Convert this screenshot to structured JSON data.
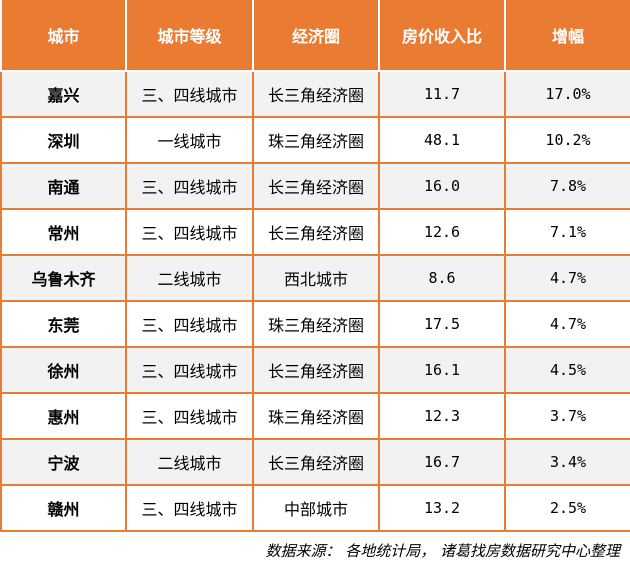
{
  "headers": [
    "城市",
    "城市等级",
    "经济圈",
    "房价收入比",
    "增幅"
  ],
  "rows": [
    {
      "city": "嘉兴",
      "tier": "三、四线城市",
      "region": "长三角经济圈",
      "ratio": "11.7",
      "growth": "17.0%"
    },
    {
      "city": "深圳",
      "tier": "一线城市",
      "region": "珠三角经济圈",
      "ratio": "48.1",
      "growth": "10.2%"
    },
    {
      "city": "南通",
      "tier": "三、四线城市",
      "region": "长三角经济圈",
      "ratio": "16.0",
      "growth": "7.8%"
    },
    {
      "city": "常州",
      "tier": "三、四线城市",
      "region": "长三角经济圈",
      "ratio": "12.6",
      "growth": "7.1%"
    },
    {
      "city": "乌鲁木齐",
      "tier": "二线城市",
      "region": "西北城市",
      "ratio": "8.6",
      "growth": "4.7%"
    },
    {
      "city": "东莞",
      "tier": "三、四线城市",
      "region": "珠三角经济圈",
      "ratio": "17.5",
      "growth": "4.7%"
    },
    {
      "city": "徐州",
      "tier": "三、四线城市",
      "region": "长三角经济圈",
      "ratio": "16.1",
      "growth": "4.5%"
    },
    {
      "city": "惠州",
      "tier": "三、四线城市",
      "region": "珠三角经济圈",
      "ratio": "12.3",
      "growth": "3.7%"
    },
    {
      "city": "宁波",
      "tier": "二线城市",
      "region": "长三角经济圈",
      "ratio": "16.7",
      "growth": "3.4%"
    },
    {
      "city": "赣州",
      "tier": "三、四线城市",
      "region": "中部城市",
      "ratio": "13.2",
      "growth": "2.5%"
    }
  ],
  "source": "数据来源：  各地统计局， 诸葛找房数据研究中心整理",
  "colors": {
    "header_bg": "#ea7b33",
    "border": "#ea7b33",
    "stripe": "#f2f2f2"
  }
}
